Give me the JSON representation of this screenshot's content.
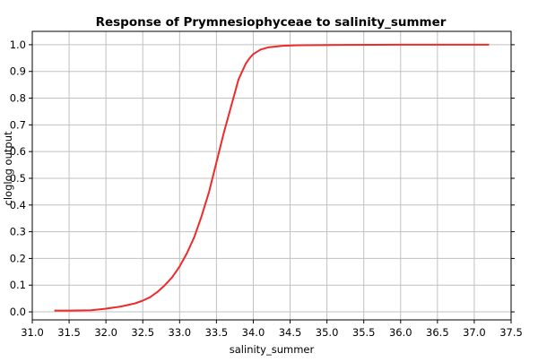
{
  "chart_data": {
    "type": "line",
    "title": "Response of Prymnesiophyceae to salinity_summer",
    "xlabel": "salinity_summer",
    "ylabel": "cloglog output",
    "xlim": [
      31.0,
      37.5
    ],
    "ylim": [
      -0.03,
      1.05
    ],
    "xticks": [
      "31.0",
      "31.5",
      "32.0",
      "32.5",
      "33.0",
      "33.5",
      "34.0",
      "34.5",
      "35.0",
      "35.5",
      "36.0",
      "36.5",
      "37.0",
      "37.5"
    ],
    "yticks": [
      "0.0",
      "0.1",
      "0.2",
      "0.3",
      "0.4",
      "0.5",
      "0.6",
      "0.7",
      "0.8",
      "0.9",
      "1.0"
    ],
    "grid": true,
    "legend": "none",
    "series": [
      {
        "color": "#ee2b2b",
        "x": [
          31.3,
          31.5,
          31.8,
          32.0,
          32.2,
          32.4,
          32.5,
          32.6,
          32.7,
          32.8,
          32.9,
          33.0,
          33.1,
          33.2,
          33.3,
          33.4,
          33.5,
          33.6,
          33.7,
          33.8,
          33.9,
          33.95,
          34.0,
          34.1,
          34.2,
          34.4,
          34.6,
          35.0,
          36.0,
          37.2
        ],
        "y": [
          0.005,
          0.005,
          0.006,
          0.012,
          0.02,
          0.032,
          0.042,
          0.055,
          0.075,
          0.1,
          0.13,
          0.17,
          0.22,
          0.28,
          0.36,
          0.45,
          0.56,
          0.67,
          0.77,
          0.87,
          0.93,
          0.95,
          0.965,
          0.982,
          0.99,
          0.996,
          0.998,
          0.999,
          1.0,
          1.0
        ]
      }
    ]
  }
}
